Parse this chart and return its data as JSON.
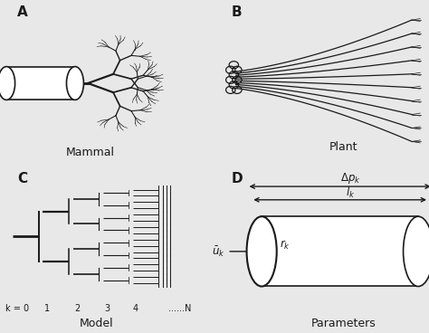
{
  "bg_color": "#e8e8e8",
  "panel_bg": "#e8e8e8",
  "title_A": "A",
  "title_B": "B",
  "title_C": "C",
  "title_D": "D",
  "label_A": "Mammal",
  "label_B": "Plant",
  "label_C": "Model",
  "label_D": "Parameters",
  "k_labels": [
    "k = 0",
    "1",
    "2",
    "3",
    "4",
    "......N"
  ],
  "line_color": "#1a1a1a"
}
